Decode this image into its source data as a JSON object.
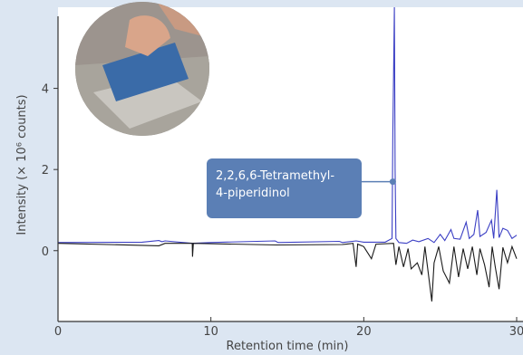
{
  "chart_data": {
    "type": "line",
    "xlabel": "Retention time (min)",
    "ylabel": "Intensity (× 10⁶ counts)",
    "xlim": [
      0,
      30
    ],
    "ylim": [
      -1.3,
      6.0
    ],
    "x_ticks": [
      "0",
      "10",
      "20",
      "30"
    ],
    "y_ticks": [
      "0",
      "2",
      "4"
    ],
    "grid": false,
    "series": [
      {
        "color": "#3b3fc4",
        "points": [
          [
            0,
            0.2
          ],
          [
            5.5,
            0.21
          ],
          [
            6.6,
            0.25
          ],
          [
            6.8,
            0.22
          ],
          [
            7.0,
            0.24
          ],
          [
            8.8,
            0.18
          ],
          [
            10,
            0.2
          ],
          [
            14.2,
            0.24
          ],
          [
            14.4,
            0.2
          ],
          [
            18.4,
            0.23
          ],
          [
            18.6,
            0.2
          ],
          [
            19.5,
            0.24
          ],
          [
            20.0,
            0.21
          ],
          [
            21.4,
            0.21
          ],
          [
            21.85,
            0.3
          ],
          [
            21.9,
            2.9
          ],
          [
            21.95,
            4.3
          ],
          [
            22.0,
            6.0
          ],
          [
            22.05,
            2.0
          ],
          [
            22.1,
            0.3
          ],
          [
            22.3,
            0.2
          ],
          [
            22.8,
            0.18
          ],
          [
            23.2,
            0.26
          ],
          [
            23.6,
            0.22
          ],
          [
            24.2,
            0.3
          ],
          [
            24.6,
            0.2
          ],
          [
            25.0,
            0.4
          ],
          [
            25.3,
            0.25
          ],
          [
            25.7,
            0.52
          ],
          [
            25.9,
            0.3
          ],
          [
            26.3,
            0.28
          ],
          [
            26.7,
            0.7
          ],
          [
            26.9,
            0.3
          ],
          [
            27.2,
            0.4
          ],
          [
            27.45,
            1.0
          ],
          [
            27.6,
            0.35
          ],
          [
            28.0,
            0.45
          ],
          [
            28.35,
            0.75
          ],
          [
            28.5,
            0.3
          ],
          [
            28.7,
            1.5
          ],
          [
            28.85,
            0.32
          ],
          [
            29.1,
            0.55
          ],
          [
            29.4,
            0.5
          ],
          [
            29.7,
            0.3
          ],
          [
            30.0,
            0.38
          ]
        ]
      },
      {
        "color": "#1a1a1a",
        "points": [
          [
            0,
            0.18
          ],
          [
            6.6,
            0.12
          ],
          [
            7.0,
            0.18
          ],
          [
            8.78,
            0.18
          ],
          [
            8.8,
            -0.15
          ],
          [
            8.85,
            0.18
          ],
          [
            14.3,
            0.14
          ],
          [
            18.6,
            0.15
          ],
          [
            19.3,
            0.18
          ],
          [
            19.5,
            -0.4
          ],
          [
            19.6,
            0.16
          ],
          [
            20.0,
            0.1
          ],
          [
            20.5,
            -0.2
          ],
          [
            20.8,
            0.16
          ],
          [
            21.95,
            0.18
          ],
          [
            22.1,
            -0.35
          ],
          [
            22.3,
            0.1
          ],
          [
            22.6,
            -0.4
          ],
          [
            22.9,
            0.05
          ],
          [
            23.1,
            -0.45
          ],
          [
            23.5,
            -0.3
          ],
          [
            23.8,
            -0.6
          ],
          [
            24.0,
            0.1
          ],
          [
            24.2,
            -0.5
          ],
          [
            24.45,
            -1.25
          ],
          [
            24.6,
            -0.3
          ],
          [
            24.9,
            0.1
          ],
          [
            25.2,
            -0.5
          ],
          [
            25.6,
            -0.8
          ],
          [
            25.9,
            0.1
          ],
          [
            26.2,
            -0.65
          ],
          [
            26.5,
            0.05
          ],
          [
            26.8,
            -0.45
          ],
          [
            27.1,
            0.1
          ],
          [
            27.4,
            -0.6
          ],
          [
            27.6,
            0.05
          ],
          [
            27.9,
            -0.35
          ],
          [
            28.2,
            -0.9
          ],
          [
            28.4,
            0.1
          ],
          [
            28.6,
            -0.4
          ],
          [
            28.85,
            -0.95
          ],
          [
            29.1,
            0.08
          ],
          [
            29.4,
            -0.3
          ],
          [
            29.7,
            0.1
          ],
          [
            30.0,
            -0.2
          ]
        ]
      }
    ],
    "annotations": [
      {
        "text_line1": "2,2,6,6-Tetramethyl-",
        "text_line2": "4-piperidinol",
        "x": 21.9,
        "y": 1.7
      }
    ]
  },
  "colors": {
    "background": "#dce6f2",
    "callout": "#5b7fb5",
    "axis": "#333333"
  },
  "photo": {
    "icon": "trowel-spreading-tile-adhesive"
  }
}
